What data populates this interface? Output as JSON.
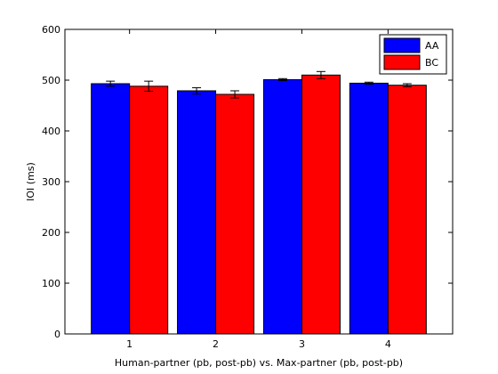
{
  "chart_data": {
    "type": "bar",
    "title": "",
    "xlabel": "Human-partner (pb, post-pb) vs. Max-partner (pb, post-pb)",
    "ylabel": "IOI (ms)",
    "categories": [
      "1",
      "2",
      "3",
      "4"
    ],
    "ylim": [
      0,
      600
    ],
    "yticks": [
      0,
      100,
      200,
      300,
      400,
      500,
      600
    ],
    "grid": false,
    "legend_position": "top-right",
    "series": [
      {
        "name": "AA",
        "color": "#0000ff",
        "values": [
          493,
          479,
          501,
          494
        ],
        "errors": [
          5,
          6,
          2,
          2
        ]
      },
      {
        "name": "BC",
        "color": "#ff0000",
        "values": [
          488,
          472,
          510,
          490
        ],
        "errors": [
          10,
          7,
          7,
          3
        ]
      }
    ]
  }
}
